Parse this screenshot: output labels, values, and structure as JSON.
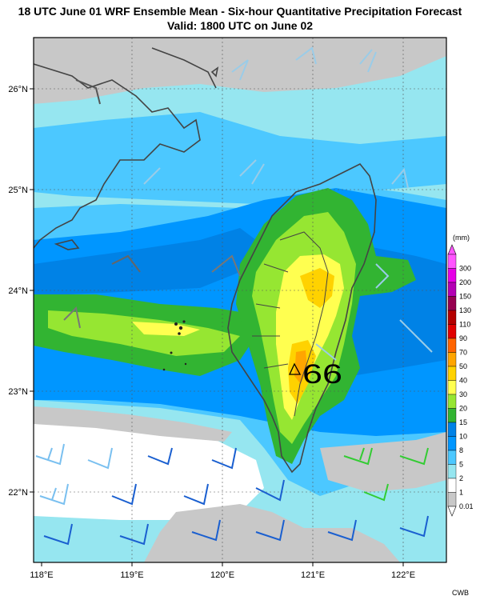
{
  "title": {
    "line1": "18 UTC June 01 WRF Ensemble Mean - Six-hour Quantitative Precipitation Forecast",
    "line2": "Valid: 1800 UTC on June 02"
  },
  "axes": {
    "x_ticks": [
      "118°E",
      "119°E",
      "120°E",
      "121°E",
      "122°E"
    ],
    "y_ticks": [
      "26°N",
      "25°N",
      "24°N",
      "23°N",
      "22°N"
    ]
  },
  "legend": {
    "unit": "(mm)",
    "levels": [
      "300",
      "200",
      "150",
      "130",
      "110",
      "90",
      "70",
      "50",
      "40",
      "30",
      "20",
      "15",
      "10",
      "8",
      "5",
      "2",
      "1",
      "0.01"
    ],
    "colors": [
      "#ff55ff",
      "#e600e6",
      "#b400b4",
      "#960050",
      "#b40000",
      "#e00000",
      "#ff6400",
      "#ffa500",
      "#ffd200",
      "#ffff50",
      "#96e632",
      "#32b432",
      "#0082e6",
      "#0096ff",
      "#4cc8ff",
      "#96e6f0",
      "#ffffff",
      "#c8c8c8"
    ]
  },
  "annotation": {
    "max_label": "66"
  },
  "credit": "CWB",
  "colors": {
    "gray": "#c8c8c8",
    "light_cyan": "#96e6f0",
    "cyan": "#4cc8ff",
    "blue": "#0096ff",
    "deep_blue": "#0082e6",
    "dark_green": "#32b432",
    "light_green": "#96e632",
    "yellow": "#ffff50",
    "gold": "#ffd200",
    "orange": "#ffa500"
  }
}
